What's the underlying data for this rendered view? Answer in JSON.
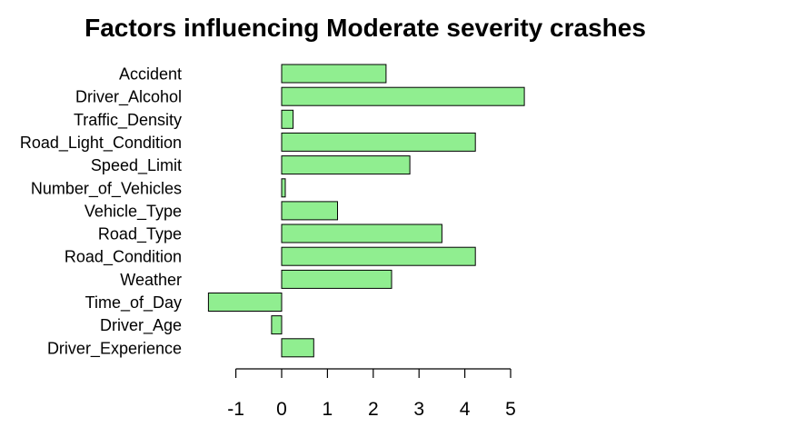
{
  "chart_data": {
    "type": "bar",
    "orientation": "horizontal",
    "title": "Factors influencing Moderate severity crashes",
    "xlabel": "",
    "ylabel": "",
    "categories": [
      "Accident",
      "Driver_Alcohol",
      "Traffic_Density",
      "Road_Light_Condition",
      "Speed_Limit",
      "Number_of_Vehicles",
      "Vehicle_Type",
      "Road_Type",
      "Road_Condition",
      "Weather",
      "Time_of_Day",
      "Driver_Age",
      "Driver_Experience"
    ],
    "values": [
      2.28,
      5.3,
      0.25,
      4.23,
      2.8,
      0.08,
      1.22,
      3.5,
      4.23,
      2.4,
      -1.6,
      -0.22,
      0.7
    ],
    "xlim": [
      -1.6,
      5.3
    ],
    "xticks": [
      -1,
      0,
      1,
      2,
      3,
      4,
      5
    ],
    "bar_color": "#90ee90",
    "bar_border_color": "#000000",
    "grid": false,
    "legend": "none"
  }
}
